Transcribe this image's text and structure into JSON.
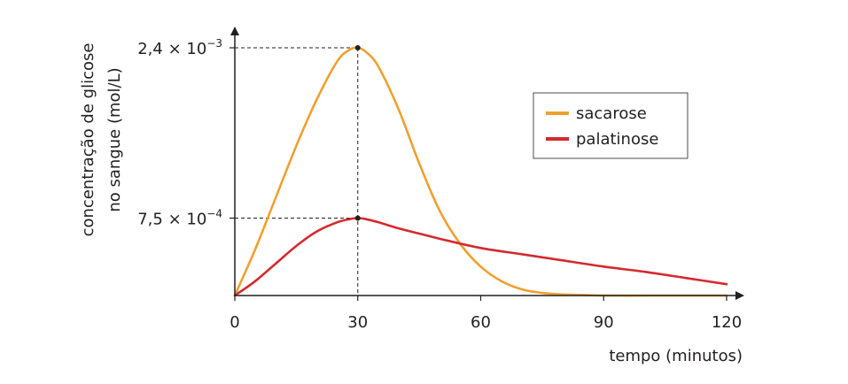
{
  "chart_data": {
    "type": "line",
    "xlabel": "tempo (minutos)",
    "ylabel_line1": "concentração de glicose",
    "ylabel_line2": "no sangue (mol/L)",
    "xlim": [
      0,
      120
    ],
    "ylim": [
      0,
      0.0029
    ],
    "x_ticks": [
      0,
      30,
      60,
      90,
      120
    ],
    "y_ticks": [
      {
        "value": 0.0024,
        "mantissa": "2,4 × 10",
        "exponent": "−3"
      },
      {
        "value": 0.00075,
        "mantissa": "7,5 × 10",
        "exponent": "−4"
      }
    ],
    "legend_position": "top-right",
    "grid": false,
    "series": [
      {
        "name": "sacarose",
        "color": "#f0a030",
        "x": [
          0,
          5,
          10,
          15,
          20,
          25,
          28,
          30,
          32,
          35,
          40,
          45,
          50,
          55,
          60,
          65,
          70,
          75,
          80,
          85,
          90,
          100,
          110,
          120
        ],
        "y": [
          0,
          0.00045,
          0.00095,
          0.00145,
          0.0019,
          0.00227,
          0.00238,
          0.0024,
          0.00236,
          0.00222,
          0.0018,
          0.00128,
          0.00082,
          0.0005,
          0.00028,
          0.00014,
          6e-05,
          2.5e-05,
          1e-05,
          5e-06,
          0,
          0,
          0,
          0
        ]
      },
      {
        "name": "palatinose",
        "color": "#d42a2f",
        "x": [
          0,
          5,
          10,
          15,
          20,
          25,
          28,
          30,
          32,
          35,
          40,
          45,
          50,
          60,
          70,
          80,
          90,
          100,
          110,
          120
        ],
        "y": [
          0,
          0.00014,
          0.00031,
          0.00048,
          0.00062,
          0.00071,
          0.00074,
          0.00075,
          0.00074,
          0.00071,
          0.00065,
          0.0006,
          0.00055,
          0.00046,
          0.0004,
          0.00034,
          0.00028,
          0.00023,
          0.00017,
          0.00011
        ]
      }
    ],
    "marked_points": [
      {
        "x": 30,
        "y": 0.0024
      },
      {
        "x": 30,
        "y": 0.00075
      }
    ]
  }
}
